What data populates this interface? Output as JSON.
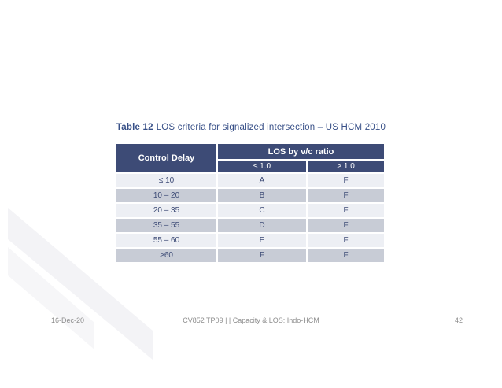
{
  "title": {
    "bold": "Table 12",
    "rest": "LOS criteria for signalized intersection – US HCM 2010"
  },
  "table": {
    "corner_header": "Control Delay",
    "group_header": "LOS by v/c ratio",
    "sub_headers": [
      "≤ 1.0",
      "> 1.0"
    ],
    "rows": [
      {
        "delay": "≤ 10",
        "vc_le_1": "A",
        "vc_gt_1": "F"
      },
      {
        "delay": "10 – 20",
        "vc_le_1": "B",
        "vc_gt_1": "F"
      },
      {
        "delay": "20 – 35",
        "vc_le_1": "C",
        "vc_gt_1": "F"
      },
      {
        "delay": "35 – 55",
        "vc_le_1": "D",
        "vc_gt_1": "F"
      },
      {
        "delay": "55 – 60",
        "vc_le_1": "E",
        "vc_gt_1": "F"
      },
      {
        "delay": ">60",
        "vc_le_1": "F",
        "vc_gt_1": "F"
      }
    ]
  },
  "footer": {
    "date": "16-Dec-20",
    "course": "CV852 TP09 | | Capacity & LOS: Indo-HCM",
    "page": "42"
  },
  "colors": {
    "header_navy": "#3d4b76",
    "row_light": "#edeff4",
    "row_dark": "#c8ccd6",
    "body_text": "#3d4b76",
    "title_blue": "#374f87",
    "footer_gray": "#8d8d8d",
    "header_text": "#ffffff",
    "background": "#ffffff"
  }
}
